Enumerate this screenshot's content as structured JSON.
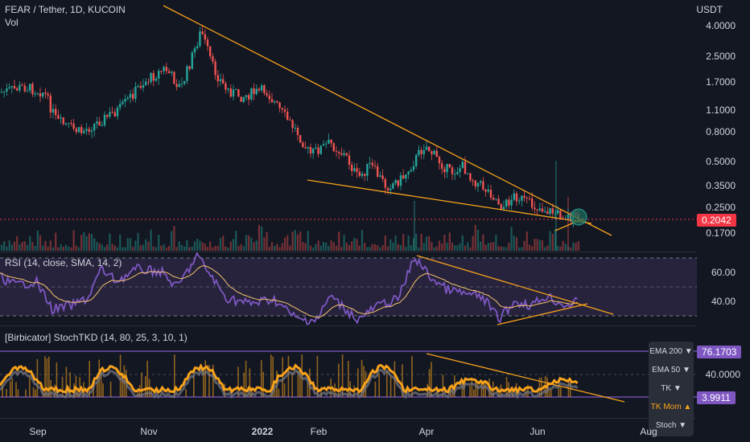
{
  "header": {
    "symbol": "FEAR / Tether, 1D, KUCOIN",
    "volume_label": "Vol",
    "currency": "USDT"
  },
  "price_pane": {
    "y_ticks": [
      "4.0000",
      "2.5000",
      "1.7000",
      "1.1000",
      "0.8000",
      "0.5000",
      "0.3500",
      "0.2500",
      "0.1700"
    ],
    "last_price": "0.2042",
    "colors": {
      "up": "#26a69a",
      "down": "#ef5350",
      "trendline": "#f7a21b",
      "last_price": "#f23645"
    }
  },
  "rsi_pane": {
    "title": "RSI (14, close, SMA, 14, 2)",
    "y_ticks": [
      "60.00",
      "40.00"
    ],
    "colors": {
      "rsi": "#7e57c2",
      "sma": "#f5c36b",
      "band": "#2a2540"
    }
  },
  "stoch_pane": {
    "title": "[Birbicator] StochTKD (14, 80, 25, 3, 10, 1)",
    "y_ticks": [
      "40.0000"
    ],
    "upper_value": "76.1703",
    "lower_value": "3.9911",
    "menu": [
      {
        "label": "EMA 200 ▼",
        "active": false
      },
      {
        "label": "EMA 50 ▼",
        "active": false
      },
      {
        "label": "TK ▼",
        "active": false
      },
      {
        "label": "TK Mom ▲",
        "active": true
      },
      {
        "label": "Stoch ▼",
        "active": false
      }
    ],
    "colors": {
      "stoch": "#f7a21b",
      "grey": "#787b86",
      "bands": "#7e57c2"
    }
  },
  "x_axis": {
    "labels": [
      "Sep",
      "Nov",
      "2022",
      "Feb",
      "Apr",
      "Jun",
      "Aug"
    ]
  },
  "chart_data": [
    {
      "type": "candlestick",
      "title": "FEAR / Tether, 1D, KUCOIN",
      "scale": "log",
      "y_ticks": [
        4.0,
        2.5,
        1.7,
        1.1,
        0.8,
        0.5,
        0.35,
        0.25,
        0.17
      ],
      "x_labels": [
        "Sep",
        "Nov",
        "2022",
        "Feb",
        "Apr",
        "Jun",
        "Aug"
      ],
      "close_path": [
        [
          "Aug",
          1.6
        ],
        [
          "Sep",
          1.5
        ],
        [
          "Sep",
          1.0
        ],
        [
          "Oct",
          0.85
        ],
        [
          "Oct",
          1.1
        ],
        [
          "Oct",
          1.5
        ],
        [
          "Nov",
          2.0
        ],
        [
          "Nov",
          1.7
        ],
        [
          "Nov",
          4.0
        ],
        [
          "Dec",
          2.0
        ],
        [
          "Dec",
          1.6
        ],
        [
          "2022",
          1.4
        ],
        [
          "2022",
          1.6
        ],
        [
          "Feb",
          0.9
        ],
        [
          "Feb",
          0.5
        ],
        [
          "Mar",
          0.7
        ],
        [
          "Mar",
          0.35
        ],
        [
          "Apr",
          0.7
        ],
        [
          "Apr",
          0.45
        ],
        [
          "May",
          0.3
        ],
        [
          "May",
          0.25
        ],
        [
          "Jun",
          0.22
        ],
        [
          "Jun",
          0.2042
        ]
      ],
      "last_price": 0.2042,
      "trendlines": "descending wedge"
    },
    {
      "type": "line",
      "title": "RSI (14, close, SMA, 14, 2)",
      "series": [
        {
          "name": "RSI"
        },
        {
          "name": "SMA"
        }
      ],
      "y_ticks": [
        60.0,
        40.0
      ]
    },
    {
      "type": "area",
      "title": "[Birbicator] StochTKD (14, 80, 25, 3, 10, 1)",
      "y_ticks": [
        40.0
      ],
      "levels": [
        76.1703,
        3.9911
      ]
    }
  ]
}
